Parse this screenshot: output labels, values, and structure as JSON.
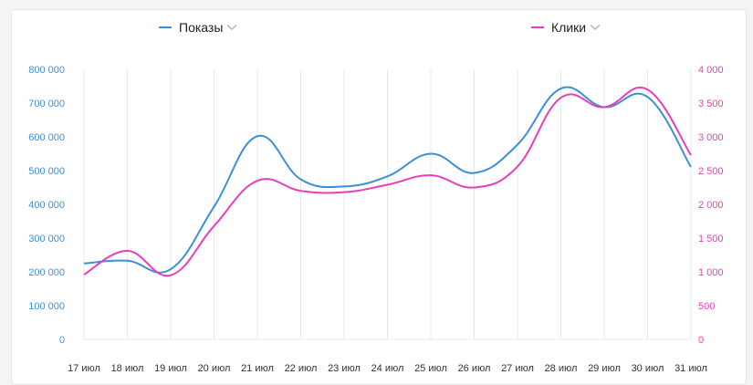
{
  "legend": {
    "left": {
      "label": "Показы",
      "color": "#3d8fd8"
    },
    "right": {
      "label": "Клики",
      "color": "#e83fb8"
    }
  },
  "chart_data": {
    "type": "line",
    "categories": [
      "17 июл",
      "18 июл",
      "19 июл",
      "20 июл",
      "21 июл",
      "22 июл",
      "23 июл",
      "24 июл",
      "25 июл",
      "26 июл",
      "27 июл",
      "28 июл",
      "29 июл",
      "30 июл",
      "31 июл"
    ],
    "series": [
      {
        "name": "Показы",
        "axis": "left",
        "color": "#3d8fd8",
        "values": [
          225000,
          233000,
          208000,
          393000,
          602000,
          474000,
          453000,
          483000,
          550000,
          493000,
          577000,
          743000,
          688000,
          718000,
          511000
        ]
      },
      {
        "name": "Клики",
        "axis": "right",
        "color": "#e83fb8",
        "values": [
          960,
          1310,
          950,
          1680,
          2350,
          2200,
          2180,
          2290,
          2430,
          2250,
          2560,
          3580,
          3440,
          3700,
          2730
        ]
      }
    ],
    "y_left": {
      "min": 0,
      "max": 800000,
      "ticks": [
        "0",
        "100 000",
        "200 000",
        "300 000",
        "400 000",
        "500 000",
        "600 000",
        "700 000",
        "800 000"
      ],
      "color": "#3d8fd8"
    },
    "y_right": {
      "min": 0,
      "max": 4000,
      "ticks": [
        "0",
        "500",
        "1 000",
        "1 500",
        "2 000",
        "2 500",
        "3 000",
        "3 500",
        "4 000"
      ],
      "color": "#e83fb8"
    },
    "grid": true,
    "legend_position": "top"
  }
}
